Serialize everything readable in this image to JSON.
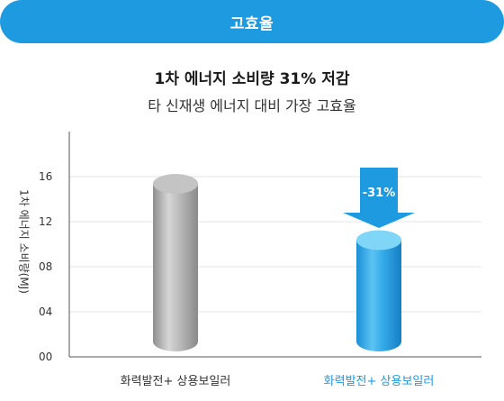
{
  "banner": {
    "label": "고효율"
  },
  "chart_data": {
    "type": "bar",
    "title": "1차 에너지 소비량 31% 저감",
    "subtitle": "타 신재생 에너지 대비 가장 고효율",
    "ylabel": "1차 에너지 소비량(MJ)",
    "xlabel": "",
    "ylim": [
      0,
      20
    ],
    "yticks": [
      "00",
      "04",
      "08",
      "12",
      "16"
    ],
    "categories": [
      "화력발전+ 상용보일러",
      "화력발전+ 상용보일러"
    ],
    "values": [
      16,
      11
    ],
    "bar_colors": [
      "#b0b0b0",
      "#2aa4e6"
    ],
    "category_colors": [
      "#333333",
      "#1e9ae0"
    ],
    "annotation": {
      "text": "-31%",
      "color": "#1e9ae0"
    },
    "grid": true
  }
}
